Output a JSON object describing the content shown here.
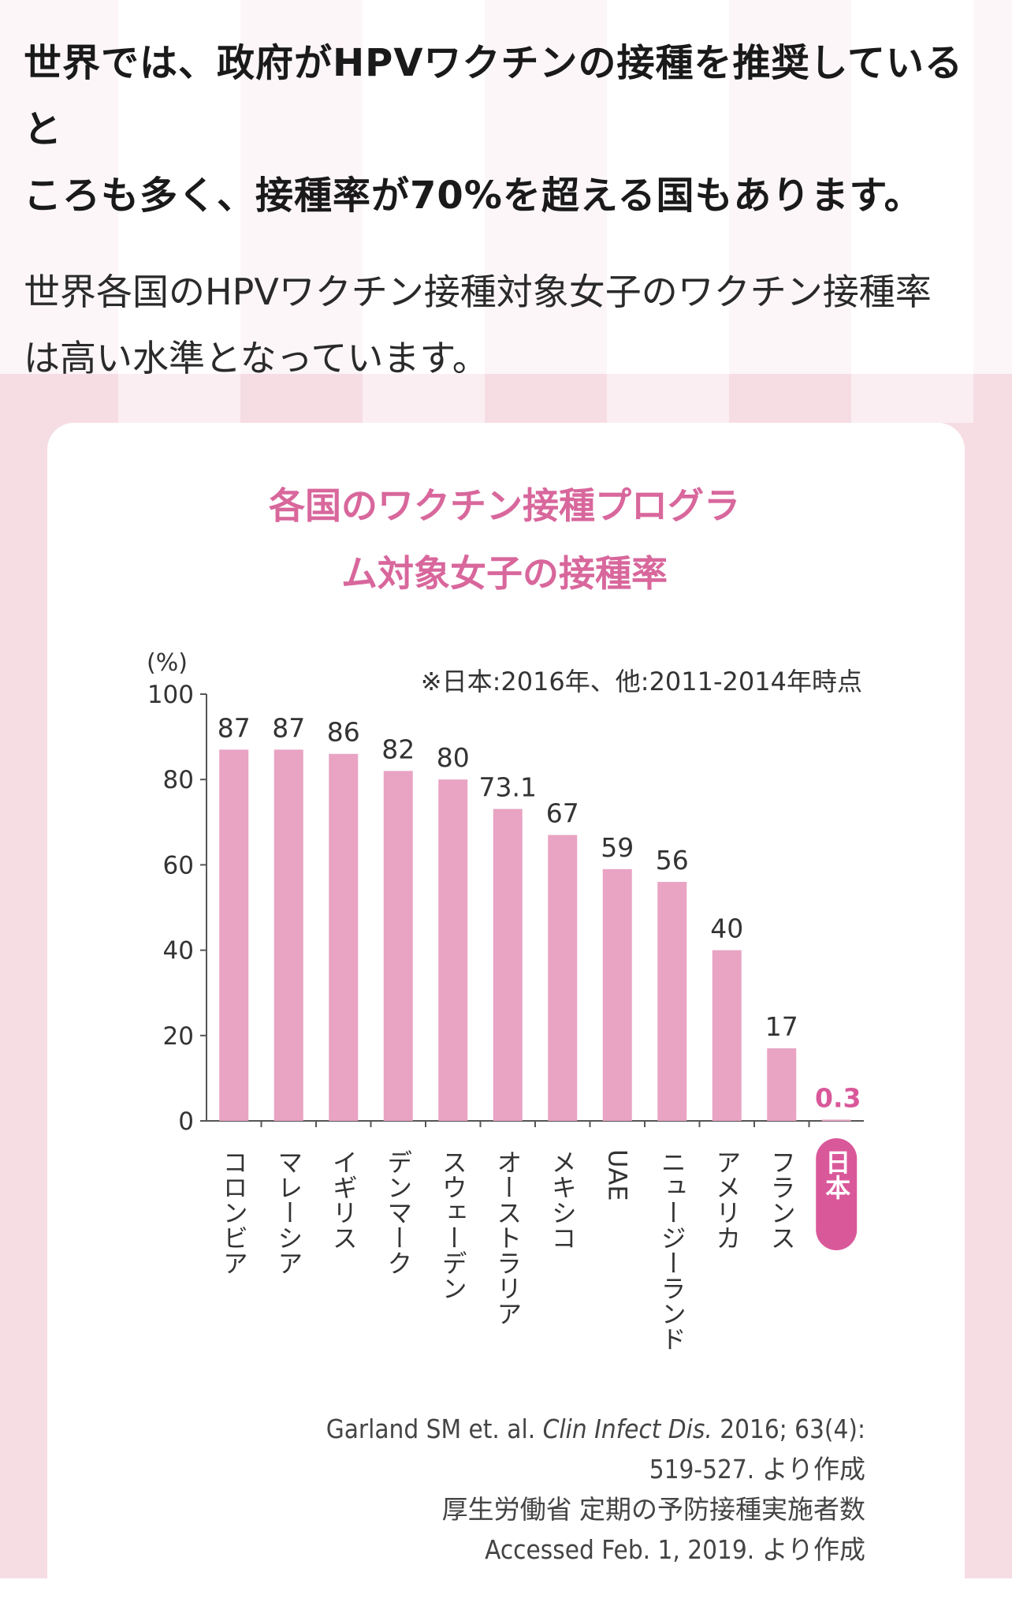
{
  "text": {
    "headline_line1": "世界では、政府がHPVワクチンの接種を推奨していると",
    "headline_line2": "ころも多く、接種率が70%を超える国もあります。",
    "body_line1": "世界各国のHPVワクチン接種対象女子のワクチン接種率",
    "body_line2": "は高い水準となっています。"
  },
  "chart_data": {
    "type": "bar",
    "title_line1": "各国のワクチン接種プログラ",
    "title_line2": "ム対象女子の接種率",
    "ylabel": "(%)",
    "annotation": "※日本:2016年、他:2011-2014年時点",
    "ylim": [
      0,
      100
    ],
    "yticks": [
      0,
      20,
      40,
      60,
      80,
      100
    ],
    "categories": [
      "コロンビア",
      "マレーシア",
      "イギリス",
      "デンマーク",
      "スウェーデン",
      "オーストラリア",
      "メキシコ",
      "UAE",
      "ニュージーランド",
      "アメリカ",
      "フランス",
      "日本"
    ],
    "values": [
      87,
      87,
      86,
      82,
      80,
      73.1,
      67,
      59,
      56,
      40,
      17,
      0.3
    ],
    "value_labels": [
      "87",
      "87",
      "86",
      "82",
      "80",
      "73.1",
      "67",
      "59",
      "56",
      "40",
      "17",
      "0.3"
    ],
    "highlight": "日本",
    "colors": {
      "bar": "#e9a3c3",
      "highlight": "#d9589a",
      "title": "#d8679c"
    }
  },
  "source": {
    "line1_a": "Garland SM et. al. ",
    "line1_b": "Clin Infect Dis.",
    "line1_c": " 2016; 63(4):",
    "line2": "519-527. より作成",
    "line3": "厚生労働省 定期の予防接種実施者数",
    "line4": "Accessed Feb. 1, 2019. より作成"
  }
}
